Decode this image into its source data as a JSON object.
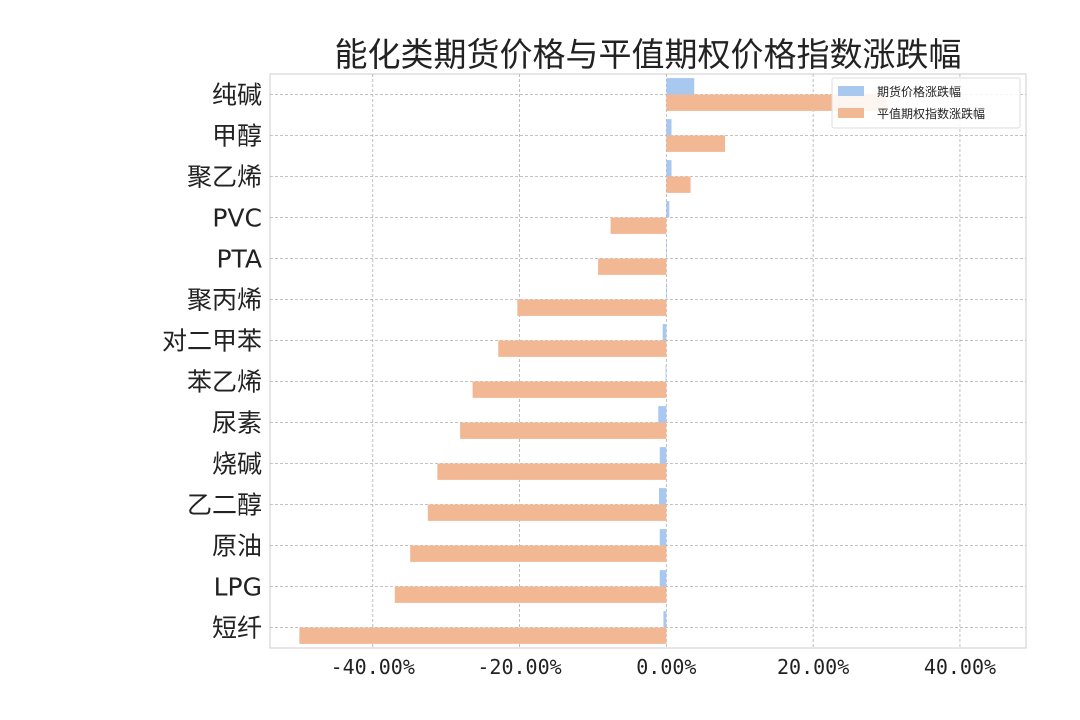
{
  "chart_data": {
    "type": "bar",
    "orientation": "horizontal",
    "title": "能化类期货价格与平值期权价格指数涨跌幅",
    "categories": [
      "纯碱",
      "甲醇",
      "聚乙烯",
      "PVC",
      "PTA",
      "聚丙烯",
      "对二甲苯",
      "苯乙烯",
      "尿素",
      "烧碱",
      "乙二醇",
      "原油",
      "LPG",
      "短纤"
    ],
    "series": [
      {
        "name": "期货价格涨跌幅",
        "color": "#a9c8ef",
        "values": [
          3.8,
          0.7,
          0.7,
          0.4,
          0.0,
          0.1,
          -0.5,
          -0.1,
          -1.1,
          -0.9,
          -1.0,
          -0.9,
          -0.9,
          -0.4
        ]
      },
      {
        "name": "平值期权指数涨跌幅",
        "color": "#f2b893",
        "values": [
          30.0,
          8.0,
          3.3,
          -7.6,
          -9.3,
          -20.3,
          -22.9,
          -26.4,
          -28.1,
          -31.2,
          -32.5,
          -34.9,
          -37.0,
          -50.0
        ]
      }
    ],
    "xlim": [
      -54,
      49
    ],
    "xticks": [
      -40,
      -20,
      0,
      20,
      40
    ],
    "xtick_labels": [
      "-40.00%",
      "-20.00%",
      "0.00%",
      "20.00%",
      "40.00%"
    ],
    "xlabel": "",
    "ylabel": "",
    "grid": true,
    "legend_position": "top-right"
  }
}
